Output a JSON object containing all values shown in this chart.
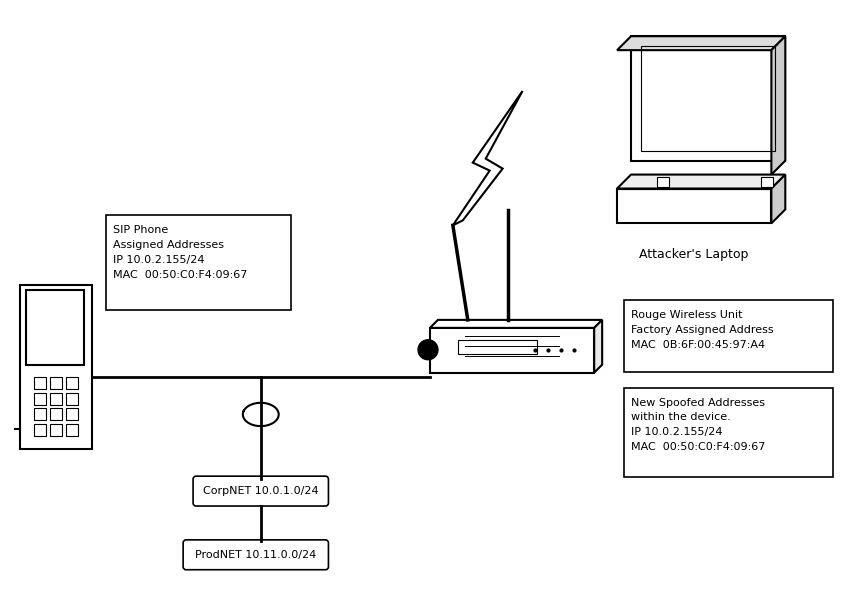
{
  "background_color": "#ffffff",
  "fig_width": 8.47,
  "fig_height": 5.96,
  "sip_phone_text": "SIP Phone\nAssigned Addresses\nIP 10.0.2.155/24\nMAC  00:50:C0:F4:09:67",
  "rouge_text": "Rouge Wireless Unit\nFactory Assigned Address\nMAC  0B:6F:00:45:97:A4",
  "spoofed_text": "New Spoofed Addresses\nwithin the device.\nIP 10.0.2.155/24\nMAC  00:50:C0:F4:09:67",
  "corpnet_label": "CorpNET 10.0.1.0/24",
  "prodnet_label": "ProdNET 10.11.0.0/24",
  "attacker_label": "Attacker's Laptop",
  "font_size_label": 8,
  "font_size_box": 8,
  "line_color": "#000000",
  "line_width": 1.5
}
